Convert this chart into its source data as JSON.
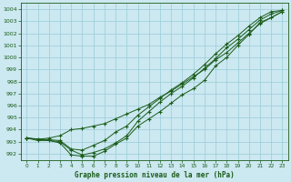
{
  "title": "Graphe pression niveau de la mer (hPa)",
  "background_color": "#cce8f0",
  "grid_color": "#99ccd9",
  "line_color": "#1a5c1a",
  "xlim": [
    -0.5,
    23.5
  ],
  "ylim": [
    991.5,
    1004.5
  ],
  "yticks": [
    992,
    993,
    994,
    995,
    996,
    997,
    998,
    999,
    1000,
    1001,
    1002,
    1003,
    1004
  ],
  "xticks": [
    0,
    1,
    2,
    3,
    4,
    5,
    6,
    7,
    8,
    9,
    10,
    11,
    12,
    13,
    14,
    15,
    16,
    17,
    18,
    19,
    20,
    21,
    22,
    23
  ],
  "series1_x": [
    0,
    1,
    2,
    3,
    4,
    5,
    6,
    7,
    8,
    9,
    10,
    11,
    12,
    13,
    14,
    15,
    16,
    17,
    18,
    19,
    20,
    21,
    22,
    23
  ],
  "series1_y": [
    993.3,
    993.1,
    993.1,
    992.9,
    991.9,
    991.8,
    991.8,
    992.2,
    992.8,
    993.3,
    994.3,
    994.9,
    995.5,
    996.2,
    996.9,
    997.4,
    998.1,
    999.3,
    1000.0,
    1001.0,
    1001.9,
    1002.9,
    1003.3,
    1003.8
  ],
  "series2_x": [
    0,
    1,
    2,
    3,
    4,
    5,
    6,
    7,
    8,
    9,
    10,
    11,
    12,
    13,
    14,
    15,
    16,
    17,
    18,
    19,
    20,
    21,
    22,
    23
  ],
  "series2_y": [
    993.3,
    993.2,
    993.3,
    993.5,
    994.0,
    994.1,
    994.3,
    994.5,
    994.9,
    995.3,
    995.7,
    996.1,
    996.7,
    997.2,
    997.8,
    998.4,
    999.0,
    999.8,
    1000.4,
    1001.2,
    1002.0,
    1002.8,
    1003.3,
    1003.8
  ],
  "series3_x": [
    0,
    3,
    4,
    5,
    6,
    7,
    8,
    9,
    10,
    11,
    12,
    13,
    14,
    15,
    16,
    17,
    18,
    19,
    20,
    21,
    22,
    23
  ],
  "series3_y": [
    993.3,
    993.0,
    992.3,
    991.9,
    992.1,
    992.4,
    992.9,
    993.5,
    994.7,
    995.5,
    996.3,
    997.0,
    997.6,
    998.3,
    999.1,
    999.9,
    1000.8,
    1001.5,
    1002.3,
    1003.1,
    1003.6,
    1003.9
  ],
  "series4_x": [
    0,
    3,
    4,
    5,
    6,
    7,
    8,
    9,
    10,
    11,
    12,
    13,
    14,
    15,
    16,
    17,
    18,
    19,
    20,
    21,
    22,
    23
  ],
  "series4_y": [
    993.3,
    993.1,
    992.4,
    992.3,
    992.7,
    993.1,
    993.8,
    994.3,
    995.2,
    995.9,
    996.6,
    997.3,
    997.9,
    998.6,
    999.4,
    1000.3,
    1001.1,
    1001.8,
    1002.6,
    1003.3,
    1003.8,
    1003.9
  ]
}
